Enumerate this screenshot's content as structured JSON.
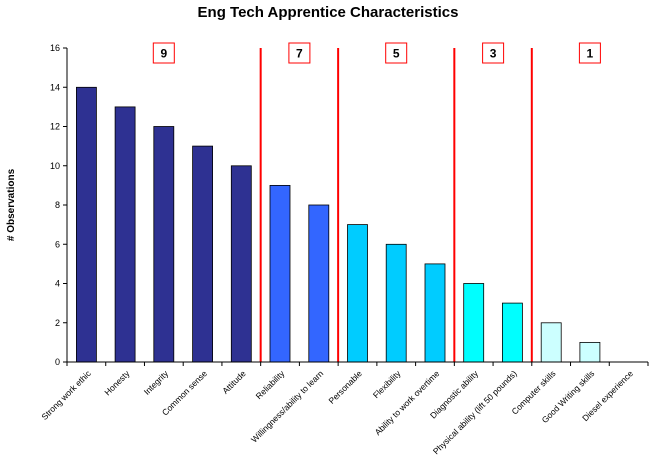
{
  "chart_data": {
    "type": "bar",
    "title": "Eng Tech Apprentice Characteristics",
    "ylabel": "# Observations",
    "xlabel": "",
    "ylim": [
      0,
      16
    ],
    "yticks": [
      0,
      2,
      4,
      6,
      8,
      10,
      12,
      14,
      16
    ],
    "grid": false,
    "categories": [
      "Strong work ethic",
      "Honesty",
      "Integrity",
      "Common sense",
      "Attitude",
      "Reliability",
      "Willingness/ability to learn",
      "Personable",
      "Flexibility",
      "Ability to work overtime",
      "Diagnostic ability",
      "Physical ability (lift 50 pounds)",
      "Computer skills",
      "Good Writing skills",
      "Diesel experience"
    ],
    "values": [
      14,
      13,
      12,
      11,
      10,
      9,
      8,
      7,
      6,
      5,
      4,
      3,
      2,
      1,
      0
    ],
    "bar_colors": [
      "#2e3192",
      "#2e3192",
      "#2e3192",
      "#2e3192",
      "#2e3192",
      "#3366ff",
      "#3366ff",
      "#00ccff",
      "#00ccff",
      "#00ccff",
      "#00ffff",
      "#00ffff",
      "#ccffff",
      "#ccffff",
      "#ccffff"
    ],
    "separator_color": "#ff0000",
    "group_separators_after": [
      4,
      6,
      9,
      11
    ],
    "groups": [
      {
        "label": "9",
        "first": 0,
        "last": 4
      },
      {
        "label": "7",
        "first": 5,
        "last": 6
      },
      {
        "label": "5",
        "first": 7,
        "last": 9
      },
      {
        "label": "3",
        "first": 10,
        "last": 11
      },
      {
        "label": "1",
        "first": 12,
        "last": 14
      }
    ]
  }
}
